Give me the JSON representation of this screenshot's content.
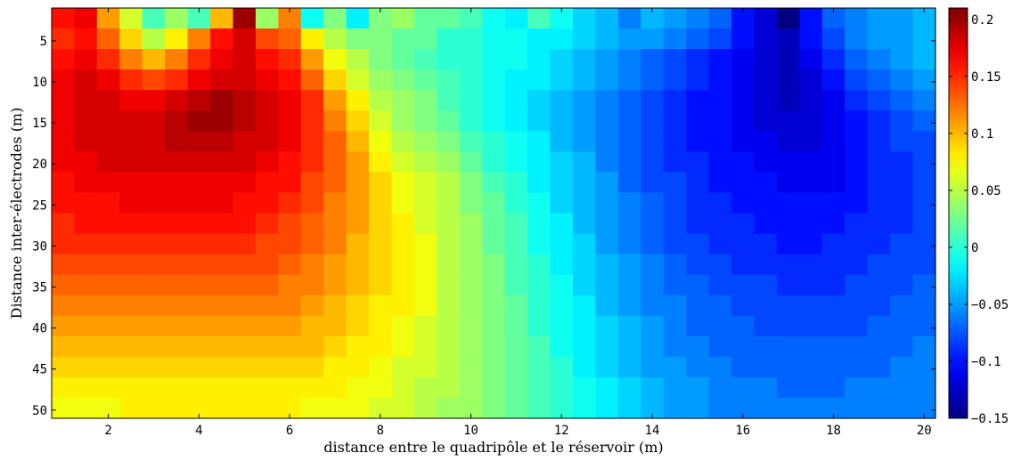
{
  "chart_data": {
    "type": "heatmap",
    "title": "",
    "xlabel": "distance entre le quadripôle et le réservoir (m)",
    "ylabel": "Distance inter-électrodes (m)",
    "x_range": [
      0.75,
      20.25
    ],
    "y_range": [
      1,
      51
    ],
    "x_ticks": [
      2,
      4,
      6,
      8,
      10,
      12,
      14,
      16,
      18,
      20
    ],
    "y_ticks": [
      5,
      10,
      15,
      20,
      25,
      30,
      35,
      40,
      45,
      50
    ],
    "y_reversed": true,
    "colormap": "jet",
    "clim": [
      -0.15,
      0.21
    ],
    "colorbar_ticks": [
      0.2,
      0.15,
      0.1,
      0.05,
      0,
      -0.05,
      -0.1,
      -0.15
    ],
    "colorbar_tick_labels": [
      "0.2",
      "0.15",
      "0.1",
      "0.05",
      "0",
      "−0.05",
      "−0.1",
      "−0.15"
    ],
    "x_centers": [
      1,
      1.5,
      2,
      2.5,
      3,
      3.5,
      4,
      4.5,
      5,
      5.5,
      6,
      6.5,
      7,
      7.5,
      8,
      8.5,
      9,
      9.5,
      10,
      10.5,
      11,
      11.5,
      12,
      12.5,
      13,
      13.5,
      14,
      14.5,
      15,
      15.5,
      16,
      16.5,
      17,
      17.5,
      18,
      18.5,
      19,
      19.5,
      20
    ],
    "rows": [
      [
        0.16,
        0.17,
        0.11,
        0.06,
        0.01,
        0.04,
        0.01,
        0.1,
        0.2,
        0.04,
        0.12,
        -0.01,
        0.03,
        -0.02,
        0.03,
        0.04,
        0.02,
        0.02,
        0.01,
        -0.01,
        -0.02,
        0.01,
        -0.01,
        -0.03,
        -0.04,
        -0.06,
        -0.04,
        -0.05,
        -0.06,
        -0.07,
        -0.1,
        -0.12,
        -0.15,
        -0.1,
        -0.07,
        -0.06,
        -0.05,
        -0.05,
        -0.04
      ],
      [
        0.15,
        0.16,
        0.13,
        0.09,
        0.05,
        0.08,
        0.12,
        0.16,
        0.18,
        0.14,
        0.13,
        0.08,
        0.05,
        0.03,
        0.03,
        0.02,
        0.02,
        0.0,
        0.0,
        -0.01,
        -0.01,
        -0.02,
        -0.02,
        -0.03,
        -0.04,
        -0.05,
        -0.05,
        -0.06,
        -0.07,
        -0.08,
        -0.1,
        -0.12,
        -0.13,
        -0.1,
        -0.08,
        -0.06,
        -0.05,
        -0.05,
        -0.04
      ],
      [
        0.16,
        0.17,
        0.15,
        0.12,
        0.1,
        0.12,
        0.15,
        0.17,
        0.18,
        0.16,
        0.15,
        0.11,
        0.07,
        0.05,
        0.03,
        0.02,
        0.01,
        0.0,
        0.0,
        -0.01,
        -0.01,
        -0.02,
        -0.03,
        -0.04,
        -0.05,
        -0.06,
        -0.07,
        -0.08,
        -0.09,
        -0.1,
        -0.11,
        -0.12,
        -0.13,
        -0.11,
        -0.09,
        -0.07,
        -0.06,
        -0.05,
        -0.04
      ],
      [
        0.17,
        0.18,
        0.17,
        0.15,
        0.14,
        0.15,
        0.17,
        0.18,
        0.18,
        0.17,
        0.16,
        0.13,
        0.09,
        0.06,
        0.04,
        0.03,
        0.02,
        0.01,
        0.0,
        -0.01,
        -0.02,
        -0.02,
        -0.03,
        -0.04,
        -0.05,
        -0.06,
        -0.07,
        -0.08,
        -0.09,
        -0.1,
        -0.11,
        -0.12,
        -0.13,
        -0.12,
        -0.1,
        -0.08,
        -0.07,
        -0.06,
        -0.05
      ],
      [
        0.17,
        0.18,
        0.18,
        0.17,
        0.17,
        0.18,
        0.19,
        0.2,
        0.19,
        0.18,
        0.17,
        0.15,
        0.11,
        0.08,
        0.05,
        0.04,
        0.03,
        0.01,
        0.0,
        -0.01,
        -0.02,
        -0.03,
        -0.04,
        -0.05,
        -0.06,
        -0.07,
        -0.08,
        -0.09,
        -0.1,
        -0.1,
        -0.11,
        -0.12,
        -0.13,
        -0.12,
        -0.11,
        -0.09,
        -0.08,
        -0.07,
        -0.06
      ],
      [
        0.17,
        0.18,
        0.18,
        0.18,
        0.18,
        0.19,
        0.2,
        0.2,
        0.19,
        0.18,
        0.17,
        0.15,
        0.12,
        0.09,
        0.06,
        0.04,
        0.03,
        0.02,
        0.0,
        -0.01,
        -0.02,
        -0.03,
        -0.04,
        -0.05,
        -0.06,
        -0.07,
        -0.08,
        -0.09,
        -0.1,
        -0.1,
        -0.11,
        -0.12,
        -0.12,
        -0.12,
        -0.11,
        -0.1,
        -0.09,
        -0.08,
        -0.07
      ],
      [
        0.17,
        0.18,
        0.18,
        0.18,
        0.18,
        0.19,
        0.19,
        0.19,
        0.18,
        0.18,
        0.17,
        0.15,
        0.13,
        0.1,
        0.07,
        0.05,
        0.04,
        0.03,
        0.01,
        0.0,
        -0.01,
        -0.02,
        -0.04,
        -0.05,
        -0.06,
        -0.07,
        -0.08,
        -0.09,
        -0.1,
        -0.1,
        -0.11,
        -0.11,
        -0.12,
        -0.12,
        -0.11,
        -0.1,
        -0.09,
        -0.08,
        -0.08
      ],
      [
        0.17,
        0.17,
        0.18,
        0.18,
        0.18,
        0.18,
        0.18,
        0.18,
        0.18,
        0.17,
        0.16,
        0.15,
        0.13,
        0.11,
        0.08,
        0.06,
        0.05,
        0.04,
        0.02,
        0.0,
        -0.01,
        -0.02,
        -0.03,
        -0.04,
        -0.06,
        -0.07,
        -0.08,
        -0.09,
        -0.09,
        -0.1,
        -0.1,
        -0.11,
        -0.11,
        -0.11,
        -0.11,
        -0.1,
        -0.09,
        -0.09,
        -0.08
      ],
      [
        0.16,
        0.17,
        0.17,
        0.17,
        0.17,
        0.17,
        0.17,
        0.17,
        0.17,
        0.16,
        0.16,
        0.14,
        0.13,
        0.11,
        0.09,
        0.07,
        0.06,
        0.05,
        0.03,
        0.01,
        0.0,
        -0.02,
        -0.03,
        -0.04,
        -0.05,
        -0.07,
        -0.08,
        -0.08,
        -0.09,
        -0.1,
        -0.1,
        -0.1,
        -0.11,
        -0.11,
        -0.11,
        -0.1,
        -0.09,
        -0.09,
        -0.08
      ],
      [
        0.16,
        0.16,
        0.16,
        0.17,
        0.17,
        0.17,
        0.17,
        0.17,
        0.16,
        0.16,
        0.15,
        0.14,
        0.12,
        0.11,
        0.09,
        0.07,
        0.06,
        0.05,
        0.03,
        0.02,
        0.0,
        -0.01,
        -0.03,
        -0.04,
        -0.05,
        -0.06,
        -0.07,
        -0.08,
        -0.09,
        -0.09,
        -0.1,
        -0.1,
        -0.1,
        -0.1,
        -0.1,
        -0.1,
        -0.09,
        -0.09,
        -0.08
      ],
      [
        0.15,
        0.16,
        0.16,
        0.16,
        0.16,
        0.16,
        0.16,
        0.16,
        0.16,
        0.15,
        0.14,
        0.13,
        0.12,
        0.11,
        0.09,
        0.08,
        0.06,
        0.05,
        0.04,
        0.02,
        0.01,
        -0.01,
        -0.02,
        -0.04,
        -0.05,
        -0.06,
        -0.07,
        -0.08,
        -0.09,
        -0.09,
        -0.09,
        -0.1,
        -0.1,
        -0.1,
        -0.1,
        -0.09,
        -0.09,
        -0.09,
        -0.08
      ],
      [
        0.15,
        0.15,
        0.15,
        0.15,
        0.15,
        0.15,
        0.15,
        0.15,
        0.15,
        0.14,
        0.14,
        0.13,
        0.12,
        0.1,
        0.09,
        0.08,
        0.07,
        0.05,
        0.04,
        0.02,
        0.01,
        -0.01,
        -0.02,
        -0.03,
        -0.05,
        -0.06,
        -0.07,
        -0.08,
        -0.08,
        -0.09,
        -0.09,
        -0.09,
        -0.1,
        -0.1,
        -0.09,
        -0.09,
        -0.09,
        -0.08,
        -0.08
      ],
      [
        0.14,
        0.14,
        0.14,
        0.14,
        0.14,
        0.14,
        0.14,
        0.14,
        0.14,
        0.14,
        0.13,
        0.12,
        0.11,
        0.1,
        0.09,
        0.08,
        0.07,
        0.05,
        0.04,
        0.03,
        0.01,
        0.0,
        -0.02,
        -0.03,
        -0.04,
        -0.05,
        -0.06,
        -0.07,
        -0.08,
        -0.08,
        -0.09,
        -0.09,
        -0.09,
        -0.09,
        -0.09,
        -0.09,
        -0.08,
        -0.08,
        -0.08
      ],
      [
        0.13,
        0.13,
        0.13,
        0.13,
        0.13,
        0.13,
        0.13,
        0.13,
        0.13,
        0.13,
        0.12,
        0.12,
        0.11,
        0.1,
        0.09,
        0.08,
        0.07,
        0.05,
        0.04,
        0.03,
        0.01,
        0.0,
        -0.01,
        -0.03,
        -0.04,
        -0.05,
        -0.06,
        -0.07,
        -0.07,
        -0.08,
        -0.08,
        -0.08,
        -0.09,
        -0.09,
        -0.09,
        -0.08,
        -0.08,
        -0.08,
        -0.07
      ],
      [
        0.12,
        0.12,
        0.12,
        0.12,
        0.12,
        0.12,
        0.12,
        0.12,
        0.12,
        0.12,
        0.12,
        0.11,
        0.1,
        0.09,
        0.08,
        0.08,
        0.07,
        0.05,
        0.04,
        0.03,
        0.02,
        0.0,
        -0.01,
        -0.02,
        -0.04,
        -0.05,
        -0.06,
        -0.06,
        -0.07,
        -0.07,
        -0.08,
        -0.08,
        -0.08,
        -0.08,
        -0.08,
        -0.08,
        -0.08,
        -0.07,
        -0.07
      ],
      [
        0.11,
        0.11,
        0.11,
        0.11,
        0.11,
        0.11,
        0.11,
        0.11,
        0.11,
        0.11,
        0.11,
        0.1,
        0.1,
        0.09,
        0.08,
        0.07,
        0.06,
        0.05,
        0.04,
        0.03,
        0.02,
        0.0,
        -0.01,
        -0.02,
        -0.03,
        -0.04,
        -0.05,
        -0.06,
        -0.07,
        -0.07,
        -0.07,
        -0.08,
        -0.08,
        -0.08,
        -0.08,
        -0.08,
        -0.07,
        -0.07,
        -0.07
      ],
      [
        0.1,
        0.1,
        0.1,
        0.1,
        0.1,
        0.1,
        0.1,
        0.1,
        0.1,
        0.1,
        0.1,
        0.1,
        0.09,
        0.08,
        0.08,
        0.07,
        0.06,
        0.05,
        0.04,
        0.03,
        0.02,
        0.01,
        -0.01,
        -0.02,
        -0.03,
        -0.04,
        -0.05,
        -0.06,
        -0.06,
        -0.07,
        -0.07,
        -0.07,
        -0.07,
        -0.07,
        -0.07,
        -0.07,
        -0.07,
        -0.07,
        -0.06
      ],
      [
        0.09,
        0.09,
        0.09,
        0.09,
        0.09,
        0.09,
        0.09,
        0.09,
        0.09,
        0.09,
        0.09,
        0.09,
        0.08,
        0.08,
        0.07,
        0.06,
        0.06,
        0.05,
        0.04,
        0.03,
        0.02,
        0.01,
        0.0,
        -0.02,
        -0.03,
        -0.04,
        -0.05,
        -0.05,
        -0.06,
        -0.06,
        -0.07,
        -0.07,
        -0.07,
        -0.07,
        -0.07,
        -0.07,
        -0.07,
        -0.06,
        -0.06
      ],
      [
        0.08,
        0.08,
        0.08,
        0.08,
        0.08,
        0.08,
        0.08,
        0.08,
        0.08,
        0.08,
        0.08,
        0.08,
        0.08,
        0.07,
        0.07,
        0.06,
        0.05,
        0.05,
        0.04,
        0.03,
        0.02,
        0.01,
        0.0,
        -0.01,
        -0.02,
        -0.03,
        -0.04,
        -0.05,
        -0.05,
        -0.06,
        -0.06,
        -0.06,
        -0.07,
        -0.07,
        -0.07,
        -0.06,
        -0.06,
        -0.06,
        -0.06
      ],
      [
        0.07,
        0.07,
        0.07,
        0.08,
        0.08,
        0.08,
        0.08,
        0.08,
        0.08,
        0.08,
        0.08,
        0.07,
        0.07,
        0.07,
        0.06,
        0.06,
        0.05,
        0.04,
        0.04,
        0.03,
        0.02,
        0.01,
        0.0,
        -0.01,
        -0.02,
        -0.03,
        -0.04,
        -0.05,
        -0.05,
        -0.06,
        -0.06,
        -0.06,
        -0.06,
        -0.06,
        -0.06,
        -0.06,
        -0.06,
        -0.06,
        -0.06
      ]
    ]
  }
}
